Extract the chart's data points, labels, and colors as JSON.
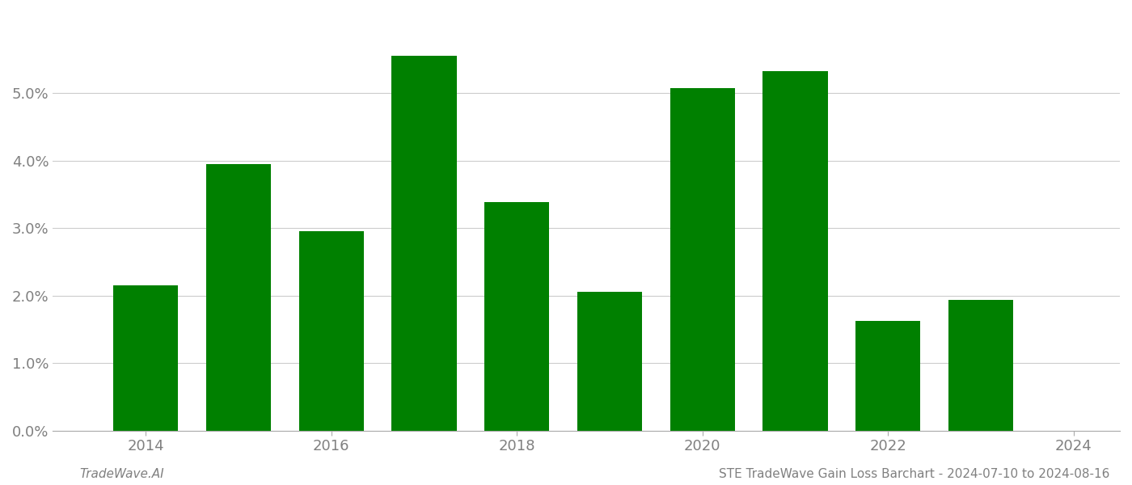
{
  "years": [
    2014,
    2015,
    2016,
    2017,
    2018,
    2019,
    2020,
    2021,
    2022,
    2023
  ],
  "values": [
    0.0215,
    0.0395,
    0.0295,
    0.0555,
    0.0338,
    0.0205,
    0.0507,
    0.0532,
    0.0162,
    0.0193
  ],
  "bar_color": "#008000",
  "background_color": "#ffffff",
  "grid_color": "#cccccc",
  "ylabel_color": "#808080",
  "xlabel_color": "#808080",
  "footer_left": "TradeWave.AI",
  "footer_right": "STE TradeWave Gain Loss Barchart - 2024-07-10 to 2024-08-16",
  "ylim": [
    0,
    0.062
  ],
  "ytick_vals": [
    0.0,
    0.01,
    0.02,
    0.03,
    0.04,
    0.05
  ],
  "xtick_vals": [
    2014,
    2016,
    2018,
    2020,
    2022,
    2024
  ],
  "bar_width": 0.7,
  "figsize": [
    14.0,
    6.0
  ],
  "dpi": 100,
  "tick_fontsize": 13,
  "footer_fontsize": 11,
  "xlim": [
    2013.0,
    2024.5
  ]
}
